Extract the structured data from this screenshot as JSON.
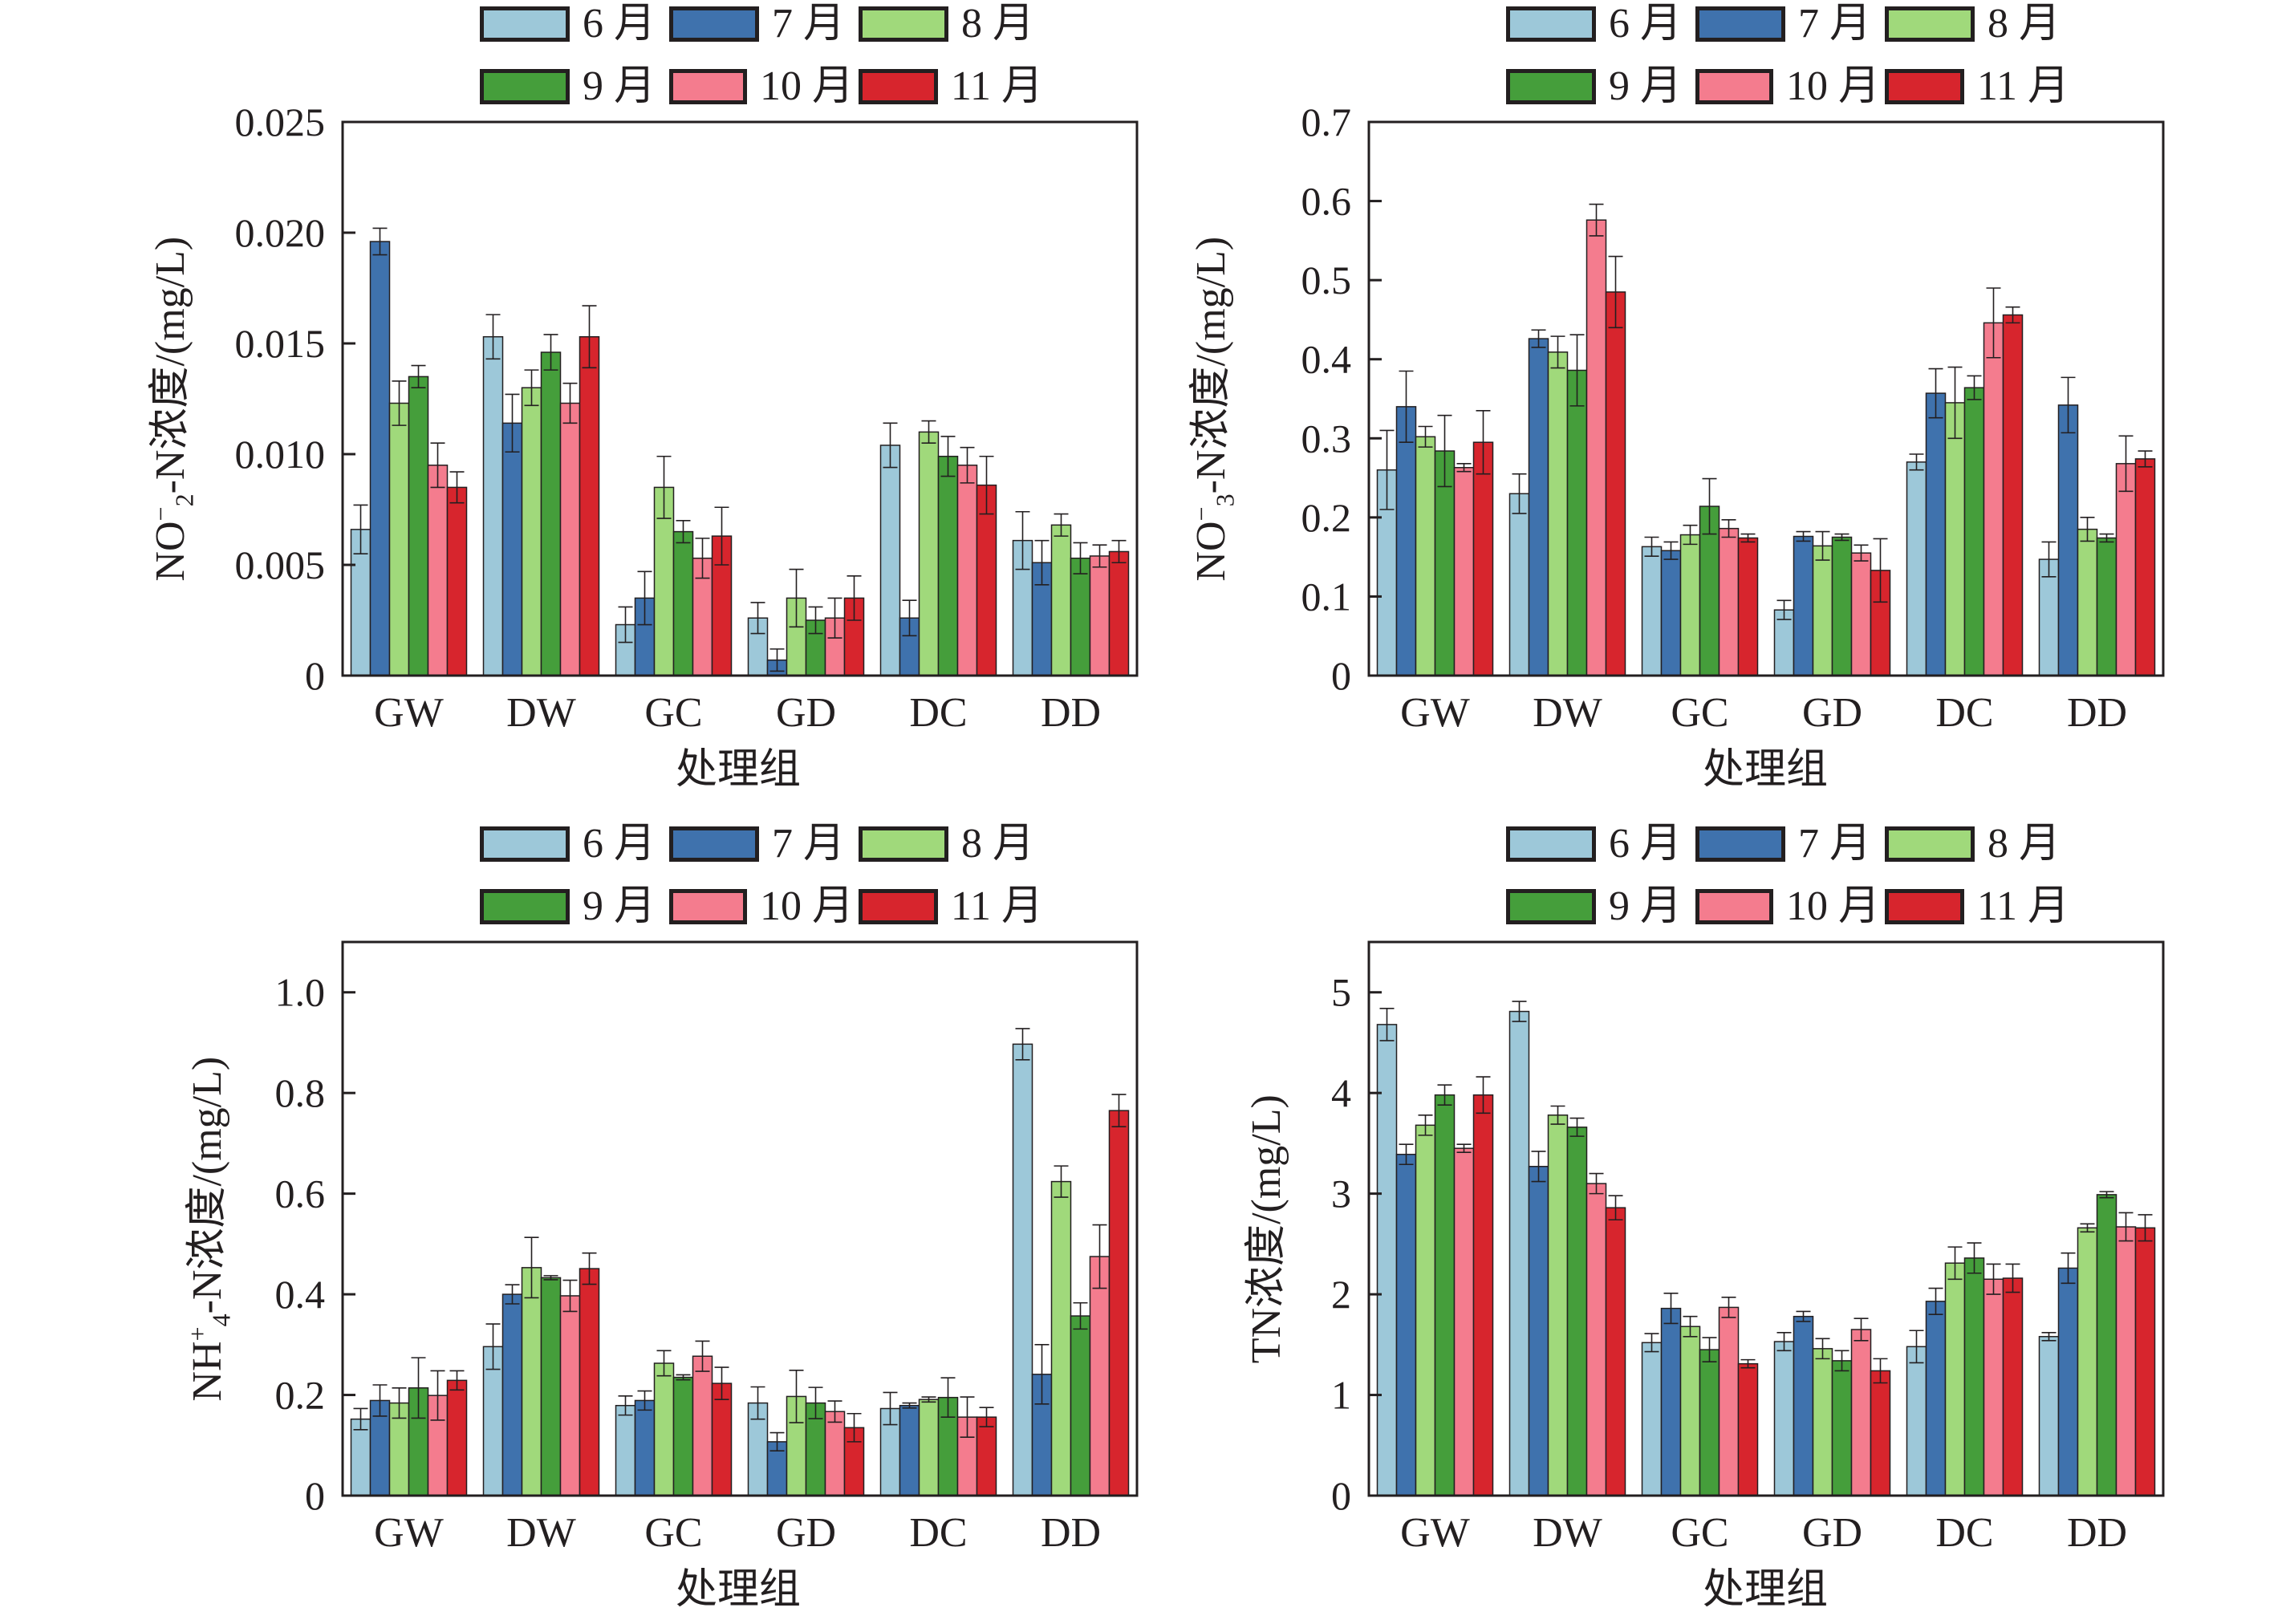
{
  "legend": {
    "entries": [
      {
        "label": "6 月",
        "color": "#9dc8d9"
      },
      {
        "label": "7 月",
        "color": "#3f72ad"
      },
      {
        "label": "8 月",
        "color": "#a0d97b"
      },
      {
        "label": "9 月",
        "color": "#459e3b"
      },
      {
        "label": "10 月",
        "color": "#f47c8e"
      },
      {
        "label": "11 月",
        "color": "#d7252d"
      }
    ]
  },
  "chart_data": [
    {
      "id": "no2",
      "type": "bar",
      "title": "",
      "ylabel_main": "NO",
      "ylabel_sup": "−",
      "ylabel_sub": "2",
      "ylabel_rest": "-N浓度/(mg/L)",
      "xlabel": "处理组",
      "categories": [
        "GW",
        "DW",
        "GC",
        "GD",
        "DC",
        "DD"
      ],
      "ylim": [
        0,
        0.025
      ],
      "yticks": [
        0,
        0.005,
        0.01,
        0.015,
        0.02,
        0.025
      ],
      "ytick_labels": [
        "0",
        "0.005",
        "0.010",
        "0.015",
        "0.020",
        "0.025"
      ],
      "grid": false,
      "legend_position": "top",
      "series": [
        {
          "name": "6 月",
          "values": [
            0.0066,
            0.0153,
            0.0023,
            0.0026,
            0.0104,
            0.0061
          ],
          "errors": [
            0.0011,
            0.001,
            0.0008,
            0.0007,
            0.001,
            0.0013
          ]
        },
        {
          "name": "7 月",
          "values": [
            0.0196,
            0.0114,
            0.0035,
            0.0007,
            0.0026,
            0.0051
          ],
          "errors": [
            0.0006,
            0.0013,
            0.0012,
            0.0005,
            0.0008,
            0.001
          ]
        },
        {
          "name": "8 月",
          "values": [
            0.0123,
            0.013,
            0.0085,
            0.0035,
            0.011,
            0.0068
          ],
          "errors": [
            0.001,
            0.0008,
            0.0014,
            0.0013,
            0.0005,
            0.0005
          ]
        },
        {
          "name": "9 月",
          "values": [
            0.0135,
            0.0146,
            0.0065,
            0.0025,
            0.0099,
            0.0053
          ],
          "errors": [
            0.0005,
            0.0008,
            0.0005,
            0.0006,
            0.0009,
            0.0007
          ]
        },
        {
          "name": "10 月",
          "values": [
            0.0095,
            0.0123,
            0.0053,
            0.0026,
            0.0095,
            0.0054
          ],
          "errors": [
            0.001,
            0.0009,
            0.0009,
            0.0009,
            0.0008,
            0.0005
          ]
        },
        {
          "name": "11 月",
          "values": [
            0.0085,
            0.0153,
            0.0063,
            0.0035,
            0.0086,
            0.0056
          ],
          "errors": [
            0.0007,
            0.0014,
            0.0013,
            0.001,
            0.0013,
            0.0005
          ]
        }
      ]
    },
    {
      "id": "no3",
      "type": "bar",
      "title": "",
      "ylabel_main": "NO",
      "ylabel_sup": "−",
      "ylabel_sub": "3",
      "ylabel_rest": "-N浓度/(mg/L)",
      "xlabel": "处理组",
      "categories": [
        "GW",
        "DW",
        "GC",
        "GD",
        "DC",
        "DD"
      ],
      "ylim": [
        0,
        0.7
      ],
      "yticks": [
        0,
        0.1,
        0.2,
        0.3,
        0.4,
        0.5,
        0.6,
        0.7
      ],
      "ytick_labels": [
        "0",
        "0.1",
        "0.2",
        "0.3",
        "0.4",
        "0.5",
        "0.6",
        "0.7"
      ],
      "grid": false,
      "legend_position": "top",
      "series": [
        {
          "name": "6 月",
          "values": [
            0.26,
            0.23,
            0.163,
            0.083,
            0.27,
            0.147
          ],
          "errors": [
            0.05,
            0.025,
            0.012,
            0.012,
            0.01,
            0.022
          ]
        },
        {
          "name": "7 月",
          "values": [
            0.34,
            0.426,
            0.158,
            0.176,
            0.357,
            0.342
          ],
          "errors": [
            0.045,
            0.011,
            0.011,
            0.006,
            0.031,
            0.035
          ]
        },
        {
          "name": "8 月",
          "values": [
            0.302,
            0.409,
            0.178,
            0.164,
            0.345,
            0.185
          ],
          "errors": [
            0.013,
            0.02,
            0.012,
            0.018,
            0.045,
            0.015
          ]
        },
        {
          "name": "9 月",
          "values": [
            0.284,
            0.386,
            0.214,
            0.175,
            0.364,
            0.174
          ],
          "errors": [
            0.045,
            0.045,
            0.035,
            0.004,
            0.015,
            0.005
          ]
        },
        {
          "name": "10 月",
          "values": [
            0.263,
            0.576,
            0.186,
            0.155,
            0.446,
            0.268
          ],
          "errors": [
            0.005,
            0.02,
            0.011,
            0.01,
            0.044,
            0.035
          ]
        },
        {
          "name": "11 月",
          "values": [
            0.295,
            0.485,
            0.174,
            0.133,
            0.456,
            0.274
          ],
          "errors": [
            0.04,
            0.045,
            0.005,
            0.04,
            0.01,
            0.01
          ]
        }
      ]
    },
    {
      "id": "nh4",
      "type": "bar",
      "title": "",
      "ylabel_main": "NH",
      "ylabel_sup": "+",
      "ylabel_sub": "4",
      "ylabel_rest": "-N浓度/(mg/L)",
      "xlabel": "处理组",
      "categories": [
        "GW",
        "DW",
        "GC",
        "GD",
        "DC",
        "DD"
      ],
      "ylim": [
        0,
        1.1
      ],
      "yticks": [
        0,
        0.2,
        0.4,
        0.6,
        0.8,
        1.0
      ],
      "ytick_labels": [
        "0",
        "0.2",
        "0.4",
        "0.6",
        "0.8",
        "1.0"
      ],
      "grid": false,
      "legend_position": "top",
      "series": [
        {
          "name": "6 月",
          "values": [
            0.152,
            0.296,
            0.179,
            0.184,
            0.173,
            0.897
          ],
          "errors": [
            0.021,
            0.045,
            0.019,
            0.032,
            0.032,
            0.031
          ]
        },
        {
          "name": "7 月",
          "values": [
            0.189,
            0.4,
            0.189,
            0.107,
            0.179,
            0.241
          ],
          "errors": [
            0.031,
            0.019,
            0.019,
            0.018,
            0.005,
            0.059
          ]
        },
        {
          "name": "8 月",
          "values": [
            0.184,
            0.453,
            0.263,
            0.197,
            0.191,
            0.624
          ],
          "errors": [
            0.03,
            0.06,
            0.025,
            0.052,
            0.005,
            0.031
          ]
        },
        {
          "name": "9 月",
          "values": [
            0.214,
            0.433,
            0.235,
            0.184,
            0.195,
            0.357
          ],
          "errors": [
            0.06,
            0.004,
            0.005,
            0.031,
            0.039,
            0.026
          ]
        },
        {
          "name": "10 月",
          "values": [
            0.199,
            0.397,
            0.277,
            0.167,
            0.156,
            0.475
          ],
          "errors": [
            0.049,
            0.031,
            0.03,
            0.021,
            0.04,
            0.063
          ]
        },
        {
          "name": "11 月",
          "values": [
            0.229,
            0.451,
            0.223,
            0.135,
            0.156,
            0.765
          ],
          "errors": [
            0.019,
            0.031,
            0.032,
            0.028,
            0.019,
            0.032
          ]
        }
      ]
    },
    {
      "id": "tn",
      "type": "bar",
      "title": "",
      "ylabel_main": "TN浓度/(mg/L)",
      "ylabel_sup": "",
      "ylabel_sub": "",
      "ylabel_rest": "",
      "xlabel": "处理组",
      "categories": [
        "GW",
        "DW",
        "GC",
        "GD",
        "DC",
        "DD"
      ],
      "ylim": [
        0,
        5.5
      ],
      "yticks": [
        0,
        1,
        2,
        3,
        4,
        5
      ],
      "ytick_labels": [
        "0",
        "1",
        "2",
        "3",
        "4",
        "5"
      ],
      "grid": false,
      "legend_position": "top",
      "series": [
        {
          "name": "6 月",
          "values": [
            4.68,
            4.81,
            1.52,
            1.53,
            1.48,
            1.58
          ],
          "errors": [
            0.16,
            0.1,
            0.09,
            0.09,
            0.16,
            0.04
          ]
        },
        {
          "name": "7 月",
          "values": [
            3.39,
            3.27,
            1.86,
            1.78,
            1.93,
            2.26
          ],
          "errors": [
            0.1,
            0.15,
            0.15,
            0.05,
            0.13,
            0.15
          ]
        },
        {
          "name": "8 月",
          "values": [
            3.68,
            3.78,
            1.68,
            1.46,
            2.31,
            2.66
          ],
          "errors": [
            0.1,
            0.09,
            0.1,
            0.1,
            0.16,
            0.04
          ]
        },
        {
          "name": "9 月",
          "values": [
            3.98,
            3.66,
            1.45,
            1.34,
            2.36,
            2.99
          ],
          "errors": [
            0.1,
            0.09,
            0.12,
            0.1,
            0.15,
            0.03
          ]
        },
        {
          "name": "10 月",
          "values": [
            3.45,
            3.1,
            1.87,
            1.65,
            2.15,
            2.67
          ],
          "errors": [
            0.04,
            0.1,
            0.1,
            0.11,
            0.15,
            0.14
          ]
        },
        {
          "name": "11 月",
          "values": [
            3.98,
            2.86,
            1.31,
            1.24,
            2.16,
            2.66
          ],
          "errors": [
            0.18,
            0.12,
            0.04,
            0.12,
            0.14,
            0.13
          ]
        }
      ]
    }
  ]
}
